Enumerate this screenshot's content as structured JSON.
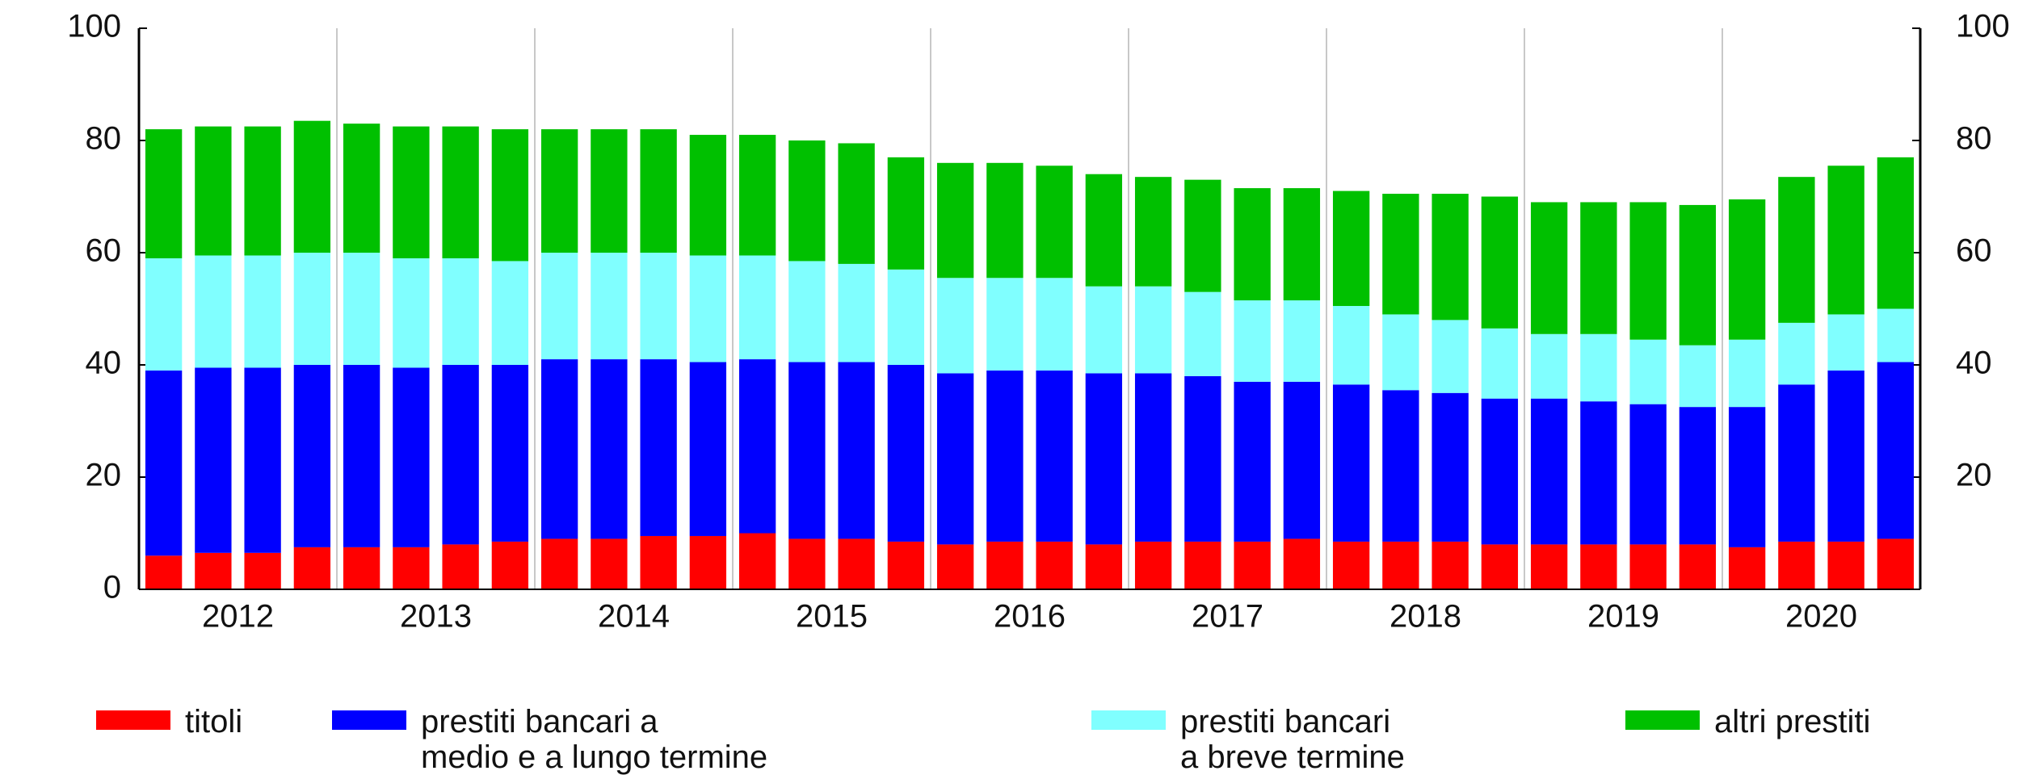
{
  "chart_data": {
    "type": "stacked-bar",
    "categories": [
      "2012",
      null,
      null,
      null,
      "2013",
      null,
      null,
      null,
      "2014",
      null,
      null,
      null,
      "2015",
      null,
      null,
      null,
      "2016",
      null,
      null,
      null,
      "2017",
      null,
      null,
      null,
      "2018",
      null,
      null,
      null,
      "2019",
      null,
      null,
      null,
      "2020",
      null,
      null,
      null
    ],
    "series": [
      {
        "name": "titoli",
        "color": "#ff0000",
        "values": [
          6,
          6.5,
          6.5,
          7.5,
          7.5,
          7.5,
          8,
          8.5,
          9,
          9,
          9.5,
          9.5,
          10,
          9,
          9,
          8.5,
          8,
          8.5,
          8.5,
          8,
          8.5,
          8.5,
          8.5,
          9,
          8.5,
          8.5,
          8.5,
          8,
          8,
          8,
          8,
          8,
          7.5,
          8.5,
          8.5,
          9
        ]
      },
      {
        "name": "prestiti bancari a\nmedio e a lungo termine",
        "color": "#0000ff",
        "values": [
          33,
          33,
          33,
          32.5,
          32.5,
          32,
          32,
          31.5,
          32,
          32,
          31.5,
          31,
          31,
          31.5,
          31.5,
          31.5,
          30.5,
          30.5,
          30.5,
          30.5,
          30,
          29.5,
          28.5,
          28,
          28,
          27,
          26.5,
          26,
          26,
          25.5,
          25,
          24.5,
          25,
          28,
          30.5,
          31.5
        ]
      },
      {
        "name": "prestiti bancari\na breve termine",
        "color": "#80ffff",
        "values": [
          20,
          20,
          20,
          20,
          20,
          19.5,
          19,
          18.5,
          19,
          19,
          19,
          19,
          18.5,
          18,
          17.5,
          17,
          17,
          16.5,
          16.5,
          15.5,
          15.5,
          15,
          14.5,
          14.5,
          14,
          13.5,
          13,
          12.5,
          11.5,
          12,
          11.5,
          11,
          12,
          11,
          10,
          9.5
        ]
      },
      {
        "name": "altri prestiti",
        "color": "#00c000",
        "values": [
          23,
          23,
          23,
          23.5,
          23,
          23.5,
          23.5,
          23.5,
          22,
          22,
          22,
          21.5,
          21.5,
          21.5,
          21.5,
          20,
          20.5,
          20.5,
          20,
          20,
          19.5,
          20,
          20,
          20,
          20.5,
          21.5,
          22.5,
          23.5,
          23.5,
          23.5,
          24.5,
          25,
          25,
          26,
          26.5,
          27
        ]
      }
    ],
    "ylim": [
      0,
      100
    ],
    "yticks": [
      0,
      20,
      40,
      60,
      80,
      100
    ],
    "y2lim": [
      0,
      100
    ],
    "y2ticks": [
      20,
      40,
      60,
      80,
      100
    ],
    "grid": false
  }
}
